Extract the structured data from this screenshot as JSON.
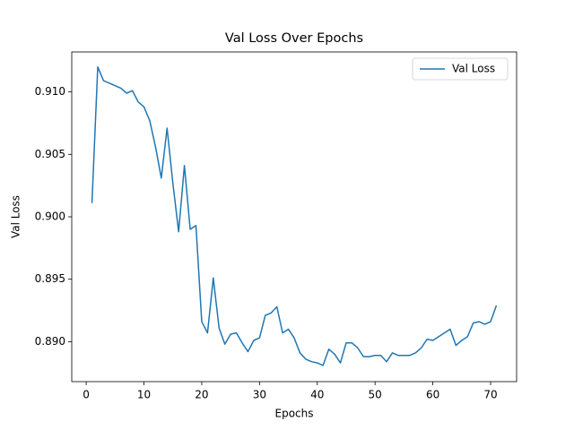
{
  "chart_data": {
    "type": "line",
    "title": "Val Loss Over Epochs",
    "x_label": "Epochs",
    "y_label": "Val Loss",
    "x": [
      1,
      2,
      3,
      4,
      5,
      6,
      7,
      8,
      9,
      10,
      11,
      12,
      13,
      14,
      15,
      16,
      17,
      18,
      19,
      20,
      21,
      22,
      23,
      24,
      25,
      26,
      27,
      28,
      29,
      30,
      31,
      32,
      33,
      34,
      35,
      36,
      37,
      38,
      39,
      40,
      41,
      42,
      43,
      44,
      45,
      46,
      47,
      48,
      49,
      50,
      51,
      52,
      53,
      54,
      55,
      56,
      57,
      58,
      59,
      60,
      61,
      62,
      63,
      64,
      65,
      66,
      67,
      68,
      69,
      70,
      71
    ],
    "series": [
      {
        "name": "Val Loss",
        "color": "#1f77b4",
        "values": [
          0.9011,
          0.912,
          0.9109,
          0.9107,
          0.9105,
          0.9103,
          0.9099,
          0.9101,
          0.9092,
          0.9088,
          0.9077,
          0.9056,
          0.9031,
          0.9071,
          0.9027,
          0.8988,
          0.9041,
          0.899,
          0.8993,
          0.8916,
          0.8907,
          0.8951,
          0.8911,
          0.8898,
          0.8906,
          0.8907,
          0.8899,
          0.8892,
          0.8901,
          0.8903,
          0.8921,
          0.8923,
          0.8928,
          0.8907,
          0.891,
          0.8903,
          0.8891,
          0.8886,
          0.8884,
          0.8883,
          0.8881,
          0.8894,
          0.889,
          0.8883,
          0.8899,
          0.8899,
          0.8895,
          0.8888,
          0.8888,
          0.8889,
          0.8889,
          0.8884,
          0.8891,
          0.8889,
          0.8889,
          0.8889,
          0.8891,
          0.8895,
          0.8902,
          0.8901,
          0.8904,
          0.8907,
          0.891,
          0.8897,
          0.8901,
          0.8904,
          0.8915,
          0.8916,
          0.8914,
          0.8916,
          0.8929
        ]
      }
    ],
    "xlim": [
      -2.5,
      74.5
    ],
    "ylim": [
      0.8868,
      0.9132
    ],
    "xticks": [
      0,
      10,
      20,
      30,
      40,
      50,
      60,
      70
    ],
    "yticks": [
      {
        "value": 0.89,
        "label": "0.890"
      },
      {
        "value": 0.895,
        "label": "0.895"
      },
      {
        "value": 0.9,
        "label": "0.900"
      },
      {
        "value": 0.905,
        "label": "0.905"
      },
      {
        "value": 0.91,
        "label": "0.910"
      }
    ],
    "legend": "upper right"
  }
}
